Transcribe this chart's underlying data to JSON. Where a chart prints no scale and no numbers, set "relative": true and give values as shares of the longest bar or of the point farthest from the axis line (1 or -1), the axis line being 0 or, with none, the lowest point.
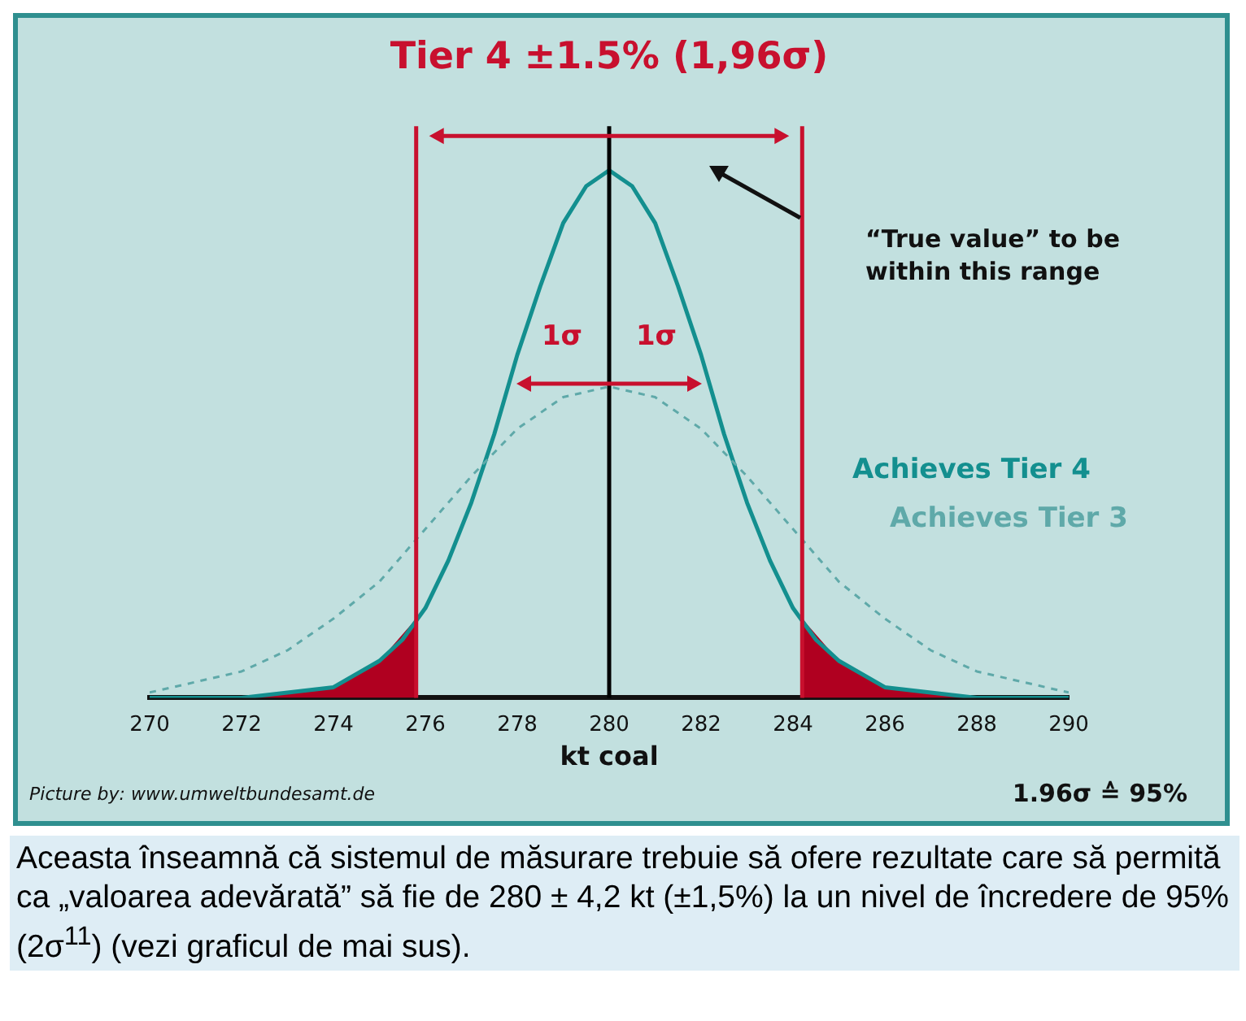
{
  "chart_data": {
    "type": "line",
    "title": "Tier 4 ±1.5% (1,96σ)",
    "xlabel": "kt coal",
    "relative": true,
    "xlim": [
      270,
      290
    ],
    "xticks": [
      270,
      272,
      274,
      276,
      278,
      280,
      282,
      284,
      286,
      288,
      290
    ],
    "grid": false,
    "legend": false,
    "marker": "none",
    "series": [
      {
        "name": "Achieves Tier 3",
        "color": "#5fa9a9",
        "line_style": "dashed",
        "x": [
          270,
          271,
          272,
          273,
          274,
          275,
          276,
          277,
          278,
          279,
          280,
          281,
          282,
          283,
          284,
          285,
          286,
          287,
          288,
          289,
          290
        ],
        "values": [
          0.01,
          0.03,
          0.05,
          0.09,
          0.15,
          0.22,
          0.32,
          0.42,
          0.51,
          0.57,
          0.59,
          0.57,
          0.51,
          0.42,
          0.32,
          0.22,
          0.15,
          0.09,
          0.05,
          0.03,
          0.01
        ]
      },
      {
        "name": "Achieves Tier 4",
        "color": "#138f8f",
        "line_style": "solid",
        "x": [
          270,
          272,
          273,
          274,
          275,
          275.5,
          276,
          276.5,
          277,
          277.5,
          278,
          278.5,
          279,
          279.5,
          280,
          280.5,
          281,
          281.5,
          282,
          282.5,
          283,
          283.5,
          284,
          284.5,
          285,
          286,
          287,
          288,
          290
        ],
        "values": [
          0,
          0,
          0.01,
          0.02,
          0.07,
          0.11,
          0.17,
          0.26,
          0.37,
          0.5,
          0.65,
          0.78,
          0.9,
          0.97,
          1,
          0.97,
          0.9,
          0.78,
          0.65,
          0.5,
          0.37,
          0.26,
          0.17,
          0.11,
          0.07,
          0.02,
          0.01,
          0,
          0
        ]
      },
      {
        "type": "area",
        "color": "#b00020",
        "x": [
          270,
          271,
          272,
          273,
          274,
          275,
          275.8
        ],
        "values": [
          0,
          0,
          0,
          0.01,
          0.02,
          0.07,
          0.15
        ]
      },
      {
        "type": "area",
        "color": "#b00020",
        "x": [
          284.2,
          285,
          286,
          287,
          288,
          289,
          290
        ],
        "values": [
          0.15,
          0.07,
          0.02,
          0.01,
          0,
          0,
          0
        ]
      }
    ],
    "ref_lines": [
      {
        "axis": "x",
        "value": 275.8,
        "color": "#c8102e"
      },
      {
        "axis": "x",
        "value": 284.2,
        "color": "#c8102e"
      },
      {
        "axis": "x",
        "value": 280,
        "color": "#000000"
      }
    ],
    "annotations": [
      "“True value” to be within this range",
      "1σ",
      "1σ",
      "Picture by: www.umweltbundesamt.de",
      "1.96σ ≙ 95%",
      "Aceasta înseamnă că sistemul de măsurare trebuie să ofere rezultate care să permită ca „valoarea adevărată” să fie de 280 ± 4,2 kt (±1,5%) la un nivel de încredere de 95% (2σ$^{11}$) (vezi graficul de mai sus)."
    ]
  }
}
